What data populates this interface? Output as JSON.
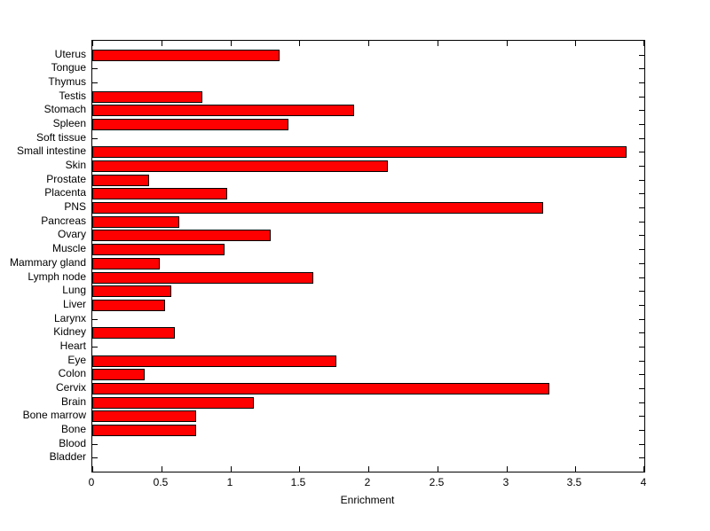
{
  "chart_data": {
    "type": "bar",
    "orientation": "horizontal",
    "title": "",
    "xlabel": "Enrichment",
    "ylabel": "",
    "xlim": [
      0,
      4
    ],
    "xticks": [
      0,
      0.5,
      1,
      1.5,
      2,
      2.5,
      3,
      3.5,
      4
    ],
    "xtick_labels": [
      "0",
      "0.5",
      "1",
      "1.5",
      "2",
      "2.5",
      "3",
      "3.5",
      "4"
    ],
    "grid": false,
    "legend": null,
    "bar_color": "#FF0000",
    "bar_edge_color": "#000000",
    "axis_color": "#000000",
    "background_color": "#FFFFFF",
    "categories_top_to_bottom": [
      "Uterus",
      "Tongue",
      "Thymus",
      "Testis",
      "Stomach",
      "Spleen",
      "Soft tissue",
      "Small intestine",
      "Skin",
      "Prostate",
      "Placenta",
      "PNS",
      "Pancreas",
      "Ovary",
      "Muscle",
      "Mammary gland",
      "Lymph node",
      "Lung",
      "Liver",
      "Larynx",
      "Kidney",
      "Heart",
      "Eye",
      "Colon",
      "Cervix",
      "Brain",
      "Bone marrow",
      "Bone",
      "Blood",
      "Bladder"
    ],
    "values": [
      1.36,
      0,
      0,
      0.8,
      1.9,
      1.42,
      0,
      3.87,
      2.14,
      0.41,
      0.98,
      3.27,
      0.63,
      1.29,
      0.96,
      0.49,
      1.6,
      0.57,
      0.53,
      0,
      0.6,
      0,
      1.77,
      0.38,
      3.31,
      1.17,
      0.75,
      0.75,
      0,
      0
    ]
  }
}
